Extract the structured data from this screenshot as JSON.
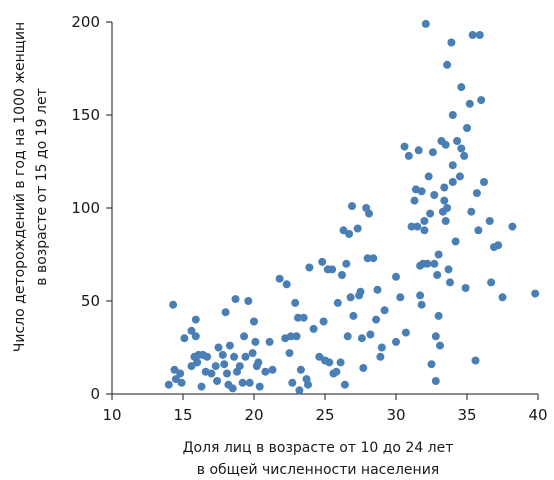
{
  "chart_data": {
    "type": "scatter",
    "title": "",
    "xlabel_lines": [
      "Доля лиц в возрасте от 10 до 24 лет",
      "в общей численности населения"
    ],
    "ylabel_lines": [
      "Число деторождений в год на 1000 женщин",
      "в возрасте от 15 до 19 лет"
    ],
    "xlim": [
      10,
      40
    ],
    "ylim": [
      0,
      200
    ],
    "xticks": [
      10,
      15,
      20,
      25,
      30,
      35,
      40
    ],
    "yticks": [
      0,
      50,
      100,
      150,
      200
    ],
    "grid": false,
    "point_color": "#4a7fb5",
    "points": [
      [
        14.0,
        5
      ],
      [
        14.3,
        48
      ],
      [
        14.4,
        13
      ],
      [
        14.5,
        8
      ],
      [
        14.8,
        11
      ],
      [
        14.9,
        6
      ],
      [
        15.1,
        30
      ],
      [
        15.6,
        34
      ],
      [
        15.6,
        15
      ],
      [
        15.8,
        20
      ],
      [
        15.9,
        40
      ],
      [
        15.9,
        31
      ],
      [
        16.0,
        17
      ],
      [
        16.1,
        21
      ],
      [
        16.3,
        4
      ],
      [
        16.4,
        21
      ],
      [
        16.6,
        12
      ],
      [
        16.7,
        20
      ],
      [
        17.0,
        11
      ],
      [
        17.3,
        15
      ],
      [
        17.4,
        7
      ],
      [
        17.5,
        25
      ],
      [
        17.8,
        21
      ],
      [
        17.9,
        16
      ],
      [
        18.0,
        44
      ],
      [
        18.1,
        11
      ],
      [
        18.2,
        5
      ],
      [
        18.3,
        26
      ],
      [
        18.5,
        3
      ],
      [
        18.6,
        20
      ],
      [
        18.7,
        51
      ],
      [
        18.8,
        12
      ],
      [
        19.0,
        15
      ],
      [
        19.2,
        6
      ],
      [
        19.3,
        31
      ],
      [
        19.4,
        20
      ],
      [
        19.6,
        50
      ],
      [
        19.7,
        6
      ],
      [
        19.9,
        22
      ],
      [
        20.0,
        39
      ],
      [
        20.1,
        28
      ],
      [
        20.2,
        15
      ],
      [
        20.3,
        17
      ],
      [
        20.4,
        4
      ],
      [
        20.8,
        12
      ],
      [
        21.1,
        28
      ],
      [
        21.3,
        13
      ],
      [
        21.8,
        62
      ],
      [
        22.2,
        30
      ],
      [
        22.3,
        59
      ],
      [
        22.5,
        22
      ],
      [
        22.6,
        31
      ],
      [
        22.7,
        6
      ],
      [
        22.9,
        49
      ],
      [
        23.0,
        31
      ],
      [
        23.1,
        41
      ],
      [
        23.2,
        2
      ],
      [
        23.3,
        13
      ],
      [
        23.5,
        41
      ],
      [
        23.7,
        8
      ],
      [
        23.8,
        5
      ],
      [
        23.9,
        68
      ],
      [
        24.2,
        35
      ],
      [
        24.6,
        20
      ],
      [
        24.8,
        71
      ],
      [
        24.9,
        39
      ],
      [
        25.0,
        18
      ],
      [
        25.2,
        67
      ],
      [
        25.3,
        17
      ],
      [
        25.5,
        67
      ],
      [
        25.6,
        11
      ],
      [
        25.8,
        12
      ],
      [
        25.9,
        49
      ],
      [
        26.1,
        17
      ],
      [
        26.2,
        64
      ],
      [
        26.3,
        88
      ],
      [
        26.4,
        5
      ],
      [
        26.5,
        70
      ],
      [
        26.6,
        31
      ],
      [
        26.7,
        86
      ],
      [
        26.8,
        52
      ],
      [
        26.9,
        101
      ],
      [
        27.0,
        42
      ],
      [
        27.3,
        89
      ],
      [
        27.4,
        53
      ],
      [
        27.5,
        55
      ],
      [
        27.6,
        30
      ],
      [
        27.7,
        14
      ],
      [
        27.9,
        100
      ],
      [
        28.0,
        73
      ],
      [
        28.1,
        97
      ],
      [
        28.2,
        32
      ],
      [
        28.4,
        73
      ],
      [
        28.6,
        40
      ],
      [
        28.7,
        56
      ],
      [
        28.9,
        20
      ],
      [
        29.0,
        25
      ],
      [
        29.2,
        45
      ],
      [
        30.0,
        28
      ],
      [
        30.0,
        63
      ],
      [
        30.3,
        52
      ],
      [
        30.6,
        133
      ],
      [
        30.7,
        33
      ],
      [
        30.9,
        128
      ],
      [
        31.1,
        90
      ],
      [
        31.3,
        104
      ],
      [
        31.4,
        110
      ],
      [
        31.5,
        90
      ],
      [
        31.6,
        131
      ],
      [
        31.7,
        69
      ],
      [
        31.7,
        53
      ],
      [
        31.8,
        48
      ],
      [
        31.8,
        109
      ],
      [
        31.9,
        70
      ],
      [
        32.0,
        88
      ],
      [
        32.0,
        93
      ],
      [
        32.1,
        199
      ],
      [
        32.2,
        70
      ],
      [
        32.3,
        117
      ],
      [
        32.4,
        97
      ],
      [
        32.5,
        16
      ],
      [
        32.6,
        130
      ],
      [
        32.7,
        107
      ],
      [
        32.7,
        70
      ],
      [
        32.8,
        31
      ],
      [
        32.8,
        7
      ],
      [
        32.9,
        64
      ],
      [
        33.0,
        75
      ],
      [
        33.0,
        42
      ],
      [
        33.1,
        26
      ],
      [
        33.2,
        136
      ],
      [
        33.3,
        98
      ],
      [
        33.4,
        104
      ],
      [
        33.4,
        111
      ],
      [
        33.5,
        93
      ],
      [
        33.5,
        134
      ],
      [
        33.6,
        100
      ],
      [
        33.6,
        177
      ],
      [
        33.7,
        67
      ],
      [
        33.8,
        60
      ],
      [
        33.9,
        189
      ],
      [
        34.0,
        114
      ],
      [
        34.0,
        123
      ],
      [
        34.0,
        150
      ],
      [
        34.2,
        82
      ],
      [
        34.3,
        136
      ],
      [
        34.5,
        117
      ],
      [
        34.6,
        165
      ],
      [
        34.6,
        132
      ],
      [
        34.8,
        128
      ],
      [
        34.9,
        57
      ],
      [
        35.0,
        143
      ],
      [
        35.2,
        156
      ],
      [
        35.3,
        98
      ],
      [
        35.4,
        193
      ],
      [
        35.6,
        18
      ],
      [
        35.7,
        108
      ],
      [
        35.8,
        88
      ],
      [
        35.9,
        193
      ],
      [
        36.0,
        158
      ],
      [
        36.2,
        114
      ],
      [
        36.6,
        93
      ],
      [
        36.7,
        60
      ],
      [
        36.9,
        79
      ],
      [
        37.2,
        80
      ],
      [
        37.5,
        52
      ],
      [
        38.2,
        90
      ],
      [
        39.8,
        54
      ]
    ]
  }
}
